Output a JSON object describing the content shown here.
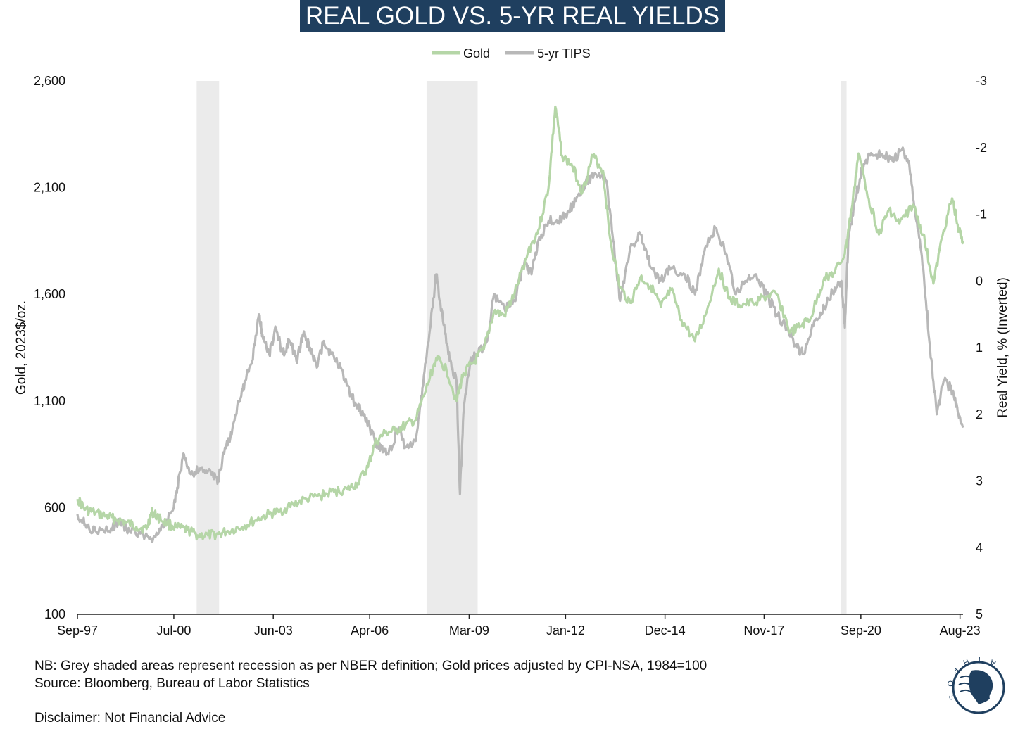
{
  "chart_data": {
    "type": "line",
    "title": "REAL GOLD VS. 5-YR REAL YIELDS",
    "legend_position": "top-center",
    "ylabel_left": "Gold, 2023$/oz.",
    "ylabel_right": "Real Yield, % (Inverted)",
    "y_left_range": [
      100,
      2600
    ],
    "y_left_ticks": [
      "2,600",
      "2,100",
      "1,600",
      "1,100",
      "600",
      "100"
    ],
    "y_left_tick_values": [
      2600,
      2100,
      1600,
      1100,
      600,
      100
    ],
    "y_right_range": [
      -3,
      5
    ],
    "y_right_inverted": true,
    "y_right_ticks": [
      "-3",
      "-2",
      "-1",
      "0",
      "1",
      "2",
      "3",
      "4",
      "5"
    ],
    "y_right_tick_values": [
      -3,
      -2,
      -1,
      0,
      1,
      2,
      3,
      4,
      5
    ],
    "x_range": [
      1997.67,
      2023.67
    ],
    "x_ticks": [
      "Sep-97",
      "Jul-00",
      "Jun-03",
      "Apr-06",
      "Mar-09",
      "Jan-12",
      "Dec-14",
      "Nov-17",
      "Sep-20",
      "Aug-23"
    ],
    "x_tick_values": [
      1997.67,
      2000.5,
      2003.42,
      2006.25,
      2009.17,
      2012.0,
      2014.92,
      2017.83,
      2020.67,
      2023.58
    ],
    "recessions": [
      [
        2001.17,
        2001.83
      ],
      [
        2007.92,
        2009.42
      ],
      [
        2020.08,
        2020.25
      ]
    ],
    "series": [
      {
        "name": "Gold",
        "color": "#b5d6a7",
        "axis": "left",
        "points": [
          [
            1997.67,
            640
          ],
          [
            1997.9,
            590
          ],
          [
            1998.2,
            575
          ],
          [
            1998.5,
            560
          ],
          [
            1998.8,
            545
          ],
          [
            1999.1,
            530
          ],
          [
            1999.4,
            510
          ],
          [
            1999.7,
            500
          ],
          [
            1999.85,
            580
          ],
          [
            2000.0,
            560
          ],
          [
            2000.3,
            525
          ],
          [
            2000.6,
            505
          ],
          [
            2000.9,
            495
          ],
          [
            2001.2,
            470
          ],
          [
            2001.5,
            470
          ],
          [
            2001.8,
            475
          ],
          [
            2002.1,
            490
          ],
          [
            2002.5,
            510
          ],
          [
            2002.9,
            540
          ],
          [
            2003.3,
            570
          ],
          [
            2003.6,
            580
          ],
          [
            2004.0,
            615
          ],
          [
            2004.4,
            640
          ],
          [
            2004.8,
            655
          ],
          [
            2005.2,
            675
          ],
          [
            2005.6,
            685
          ],
          [
            2005.9,
            715
          ],
          [
            2006.2,
            790
          ],
          [
            2006.4,
            900
          ],
          [
            2006.7,
            950
          ],
          [
            2007.0,
            960
          ],
          [
            2007.3,
            985
          ],
          [
            2007.6,
            1010
          ],
          [
            2007.9,
            1150
          ],
          [
            2008.2,
            1300
          ],
          [
            2008.5,
            1250
          ],
          [
            2008.8,
            1100
          ],
          [
            2009.0,
            1230
          ],
          [
            2009.3,
            1280
          ],
          [
            2009.6,
            1340
          ],
          [
            2009.9,
            1520
          ],
          [
            2010.2,
            1500
          ],
          [
            2010.5,
            1600
          ],
          [
            2010.9,
            1800
          ],
          [
            2011.2,
            1900
          ],
          [
            2011.5,
            2100
          ],
          [
            2011.7,
            2480
          ],
          [
            2011.9,
            2250
          ],
          [
            2012.2,
            2200
          ],
          [
            2012.5,
            2080
          ],
          [
            2012.8,
            2250
          ],
          [
            2013.1,
            2180
          ],
          [
            2013.3,
            1870
          ],
          [
            2013.6,
            1630
          ],
          [
            2013.9,
            1560
          ],
          [
            2014.2,
            1680
          ],
          [
            2014.5,
            1640
          ],
          [
            2014.8,
            1540
          ],
          [
            2015.1,
            1620
          ],
          [
            2015.4,
            1480
          ],
          [
            2015.8,
            1380
          ],
          [
            2016.1,
            1500
          ],
          [
            2016.5,
            1720
          ],
          [
            2016.8,
            1580
          ],
          [
            2017.1,
            1550
          ],
          [
            2017.5,
            1560
          ],
          [
            2017.9,
            1590
          ],
          [
            2018.2,
            1600
          ],
          [
            2018.6,
            1420
          ],
          [
            2018.9,
            1450
          ],
          [
            2019.2,
            1490
          ],
          [
            2019.6,
            1680
          ],
          [
            2019.9,
            1700
          ],
          [
            2020.2,
            1790
          ],
          [
            2020.4,
            2000
          ],
          [
            2020.6,
            2260
          ],
          [
            2020.9,
            2050
          ],
          [
            2021.2,
            1880
          ],
          [
            2021.5,
            2000
          ],
          [
            2021.8,
            1930
          ],
          [
            2022.2,
            2020
          ],
          [
            2022.5,
            1880
          ],
          [
            2022.8,
            1650
          ],
          [
            2023.1,
            1900
          ],
          [
            2023.35,
            2050
          ],
          [
            2023.55,
            1900
          ],
          [
            2023.67,
            1850
          ]
        ]
      },
      {
        "name": "5-yr TIPS",
        "color": "#b8b8b8",
        "axis": "right",
        "points": [
          [
            1997.67,
            3.5
          ],
          [
            1997.9,
            3.65
          ],
          [
            1998.2,
            3.75
          ],
          [
            1998.6,
            3.75
          ],
          [
            1998.9,
            3.6
          ],
          [
            1999.2,
            3.75
          ],
          [
            1999.6,
            3.8
          ],
          [
            1999.9,
            3.85
          ],
          [
            2000.2,
            3.7
          ],
          [
            2000.5,
            3.4
          ],
          [
            2000.6,
            3.1
          ],
          [
            2000.8,
            2.6
          ],
          [
            2001.0,
            2.9
          ],
          [
            2001.3,
            2.8
          ],
          [
            2001.6,
            2.9
          ],
          [
            2001.8,
            3.0
          ],
          [
            2002.0,
            2.5
          ],
          [
            2002.2,
            2.3
          ],
          [
            2002.4,
            1.8
          ],
          [
            2002.6,
            1.5
          ],
          [
            2002.8,
            1.2
          ],
          [
            2003.0,
            0.5
          ],
          [
            2003.1,
            0.8
          ],
          [
            2003.3,
            1.1
          ],
          [
            2003.5,
            0.7
          ],
          [
            2003.7,
            1.1
          ],
          [
            2003.9,
            0.9
          ],
          [
            2004.1,
            1.2
          ],
          [
            2004.3,
            0.8
          ],
          [
            2004.5,
            1.0
          ],
          [
            2004.7,
            1.3
          ],
          [
            2004.9,
            0.9
          ],
          [
            2005.1,
            1.1
          ],
          [
            2005.4,
            1.3
          ],
          [
            2005.7,
            1.7
          ],
          [
            2005.9,
            1.9
          ],
          [
            2006.1,
            2.0
          ],
          [
            2006.4,
            2.4
          ],
          [
            2006.6,
            2.5
          ],
          [
            2006.8,
            2.6
          ],
          [
            2007.1,
            2.2
          ],
          [
            2007.3,
            2.5
          ],
          [
            2007.6,
            2.4
          ],
          [
            2007.8,
            1.6
          ],
          [
            2008.0,
            0.8
          ],
          [
            2008.2,
            -0.1
          ],
          [
            2008.4,
            0.6
          ],
          [
            2008.6,
            1.2
          ],
          [
            2008.8,
            1.5
          ],
          [
            2008.9,
            3.2
          ],
          [
            2009.0,
            2.0
          ],
          [
            2009.2,
            1.2
          ],
          [
            2009.4,
            1.1
          ],
          [
            2009.7,
            0.9
          ],
          [
            2009.9,
            0.2
          ],
          [
            2010.2,
            0.4
          ],
          [
            2010.5,
            0.3
          ],
          [
            2010.8,
            -0.3
          ],
          [
            2011.0,
            -0.1
          ],
          [
            2011.2,
            -0.6
          ],
          [
            2011.5,
            -0.9
          ],
          [
            2011.8,
            -0.9
          ],
          [
            2012.0,
            -1.0
          ],
          [
            2012.3,
            -1.2
          ],
          [
            2012.6,
            -1.5
          ],
          [
            2012.9,
            -1.6
          ],
          [
            2013.2,
            -1.5
          ],
          [
            2013.4,
            -0.6
          ],
          [
            2013.6,
            0.3
          ],
          [
            2013.9,
            -0.5
          ],
          [
            2014.2,
            -0.7
          ],
          [
            2014.5,
            -0.2
          ],
          [
            2014.8,
            0.0
          ],
          [
            2015.1,
            -0.2
          ],
          [
            2015.5,
            -0.1
          ],
          [
            2015.8,
            0.2
          ],
          [
            2016.1,
            -0.5
          ],
          [
            2016.4,
            -0.8
          ],
          [
            2016.7,
            -0.4
          ],
          [
            2017.0,
            0.2
          ],
          [
            2017.3,
            0.0
          ],
          [
            2017.6,
            -0.1
          ],
          [
            2017.9,
            0.2
          ],
          [
            2018.2,
            0.5
          ],
          [
            2018.5,
            0.7
          ],
          [
            2018.8,
            1.0
          ],
          [
            2019.0,
            1.1
          ],
          [
            2019.3,
            0.6
          ],
          [
            2019.6,
            0.4
          ],
          [
            2019.9,
            0.1
          ],
          [
            2020.1,
            0.0
          ],
          [
            2020.2,
            0.7
          ],
          [
            2020.3,
            -0.6
          ],
          [
            2020.5,
            -1.2
          ],
          [
            2020.7,
            -1.7
          ],
          [
            2021.0,
            -1.9
          ],
          [
            2021.3,
            -1.9
          ],
          [
            2021.6,
            -1.8
          ],
          [
            2021.9,
            -2.0
          ],
          [
            2022.1,
            -1.7
          ],
          [
            2022.3,
            -0.9
          ],
          [
            2022.5,
            -0.2
          ],
          [
            2022.7,
            1.0
          ],
          [
            2022.9,
            2.0
          ],
          [
            2023.1,
            1.5
          ],
          [
            2023.3,
            1.6
          ],
          [
            2023.5,
            1.9
          ],
          [
            2023.67,
            2.2
          ]
        ]
      }
    ],
    "notes": [
      "NB: Grey shaded areas represent recession as per NBER definition; Gold prices adjusted by CPI-NSA, 1984=100",
      "Source: Bloomberg, Bureau of Labor Statistics",
      "Disclaimer: Not Financial Advice"
    ],
    "logo_text": "SOPHIA"
  }
}
